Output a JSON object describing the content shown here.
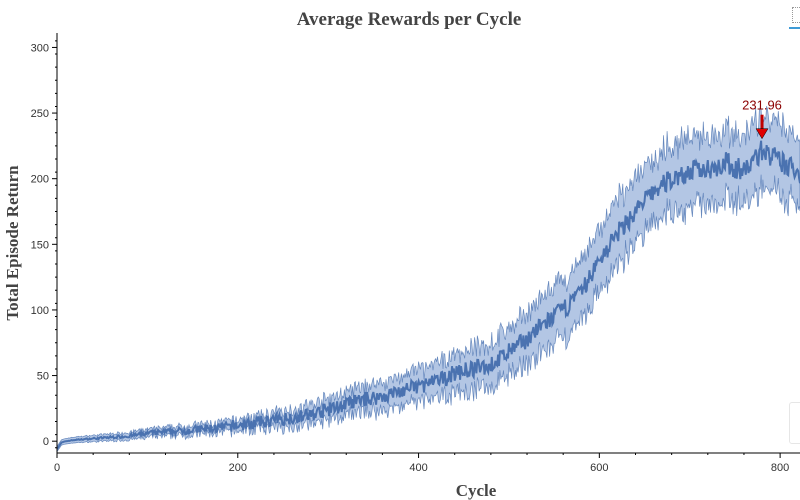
{
  "chart_data": {
    "type": "line",
    "title": "Average Rewards per Cycle",
    "xlabel": "Cycle",
    "ylabel": "Total Episode Return",
    "xlim": [
      0,
      822
    ],
    "ylim": [
      -9,
      311
    ],
    "x_ticks": [
      0,
      200,
      400,
      600,
      800
    ],
    "y_ticks": [
      0,
      50,
      100,
      150,
      200,
      250,
      300
    ],
    "grid": false,
    "series": [
      {
        "color": "#4a72b0",
        "band_color": "#b3c6e4",
        "mean": [
          [
            0,
            -6
          ],
          [
            5,
            -1
          ],
          [
            10,
            0
          ],
          [
            20,
            1
          ],
          [
            40,
            2
          ],
          [
            60,
            3
          ],
          [
            80,
            4
          ],
          [
            100,
            6
          ],
          [
            120,
            7
          ],
          [
            140,
            8
          ],
          [
            160,
            9
          ],
          [
            180,
            10
          ],
          [
            200,
            12
          ],
          [
            220,
            14
          ],
          [
            240,
            16
          ],
          [
            260,
            18
          ],
          [
            280,
            20
          ],
          [
            300,
            24
          ],
          [
            320,
            28
          ],
          [
            340,
            32
          ],
          [
            360,
            34
          ],
          [
            380,
            38
          ],
          [
            400,
            42
          ],
          [
            420,
            45
          ],
          [
            440,
            52
          ],
          [
            460,
            55
          ],
          [
            480,
            58
          ],
          [
            500,
            68
          ],
          [
            520,
            78
          ],
          [
            540,
            90
          ],
          [
            560,
            100
          ],
          [
            580,
            113
          ],
          [
            600,
            138
          ],
          [
            620,
            158
          ],
          [
            640,
            175
          ],
          [
            660,
            190
          ],
          [
            680,
            200
          ],
          [
            700,
            205
          ],
          [
            720,
            208
          ],
          [
            740,
            212
          ],
          [
            760,
            205
          ],
          [
            780,
            222
          ],
          [
            800,
            212
          ],
          [
            822,
            205
          ]
        ],
        "band_halfwidth": [
          [
            0,
            2
          ],
          [
            100,
            3
          ],
          [
            200,
            4
          ],
          [
            300,
            8
          ],
          [
            400,
            12
          ],
          [
            500,
            18
          ],
          [
            600,
            24
          ],
          [
            700,
            26
          ],
          [
            822,
            26
          ]
        ]
      }
    ],
    "annotation": {
      "x": 780,
      "y": 232,
      "label": "231.96",
      "marker": "red-down-triangle"
    }
  }
}
